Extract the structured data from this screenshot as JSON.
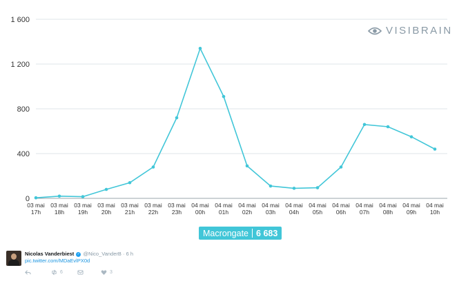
{
  "brand": {
    "name": "VISIBRAIN",
    "icon": "eye-icon",
    "color": "#8a9aa6"
  },
  "badge": {
    "label": "Macrongate",
    "count": "6 683",
    "color": "#41c6d8"
  },
  "chart_data": {
    "type": "line",
    "title": "",
    "xlabel": "",
    "ylabel": "",
    "ylim": [
      0,
      1600
    ],
    "yticks": [
      "0",
      "400",
      "800",
      "1 200",
      "1 600"
    ],
    "ytick_values": [
      0,
      400,
      800,
      1200,
      1600
    ],
    "grid": true,
    "line_color": "#41c6d8",
    "categories": [
      [
        "03 mai",
        "17h"
      ],
      [
        "03 mai",
        "18h"
      ],
      [
        "03 mai",
        "19h"
      ],
      [
        "03 mai",
        "20h"
      ],
      [
        "03 mai",
        "21h"
      ],
      [
        "03 mai",
        "22h"
      ],
      [
        "03 mai",
        "23h"
      ],
      [
        "04 mai",
        "00h"
      ],
      [
        "04 mai",
        "01h"
      ],
      [
        "04 mai",
        "02h"
      ],
      [
        "04 mai",
        "03h"
      ],
      [
        "04 mai",
        "04h"
      ],
      [
        "04 mai",
        "05h"
      ],
      [
        "04 mai",
        "06h"
      ],
      [
        "04 mai",
        "07h"
      ],
      [
        "04 mai",
        "08h"
      ],
      [
        "04 mai",
        "09h"
      ],
      [
        "04 mai",
        "10h"
      ]
    ],
    "values": [
      5,
      20,
      15,
      80,
      140,
      280,
      720,
      1340,
      910,
      290,
      110,
      90,
      95,
      280,
      660,
      640,
      550,
      440
    ]
  },
  "tweet": {
    "author": "Nicolas Vanderbiest",
    "handle": "@Nico_VanderB",
    "time": "6 h",
    "link": "pic.twitter.com/MDaEvlPX0d",
    "retweets": "6",
    "likes": "3",
    "icons": {
      "reply": "reply-icon",
      "retweet": "retweet-icon",
      "dm": "message-icon",
      "like": "heart-icon",
      "verified": "verified-icon"
    }
  }
}
